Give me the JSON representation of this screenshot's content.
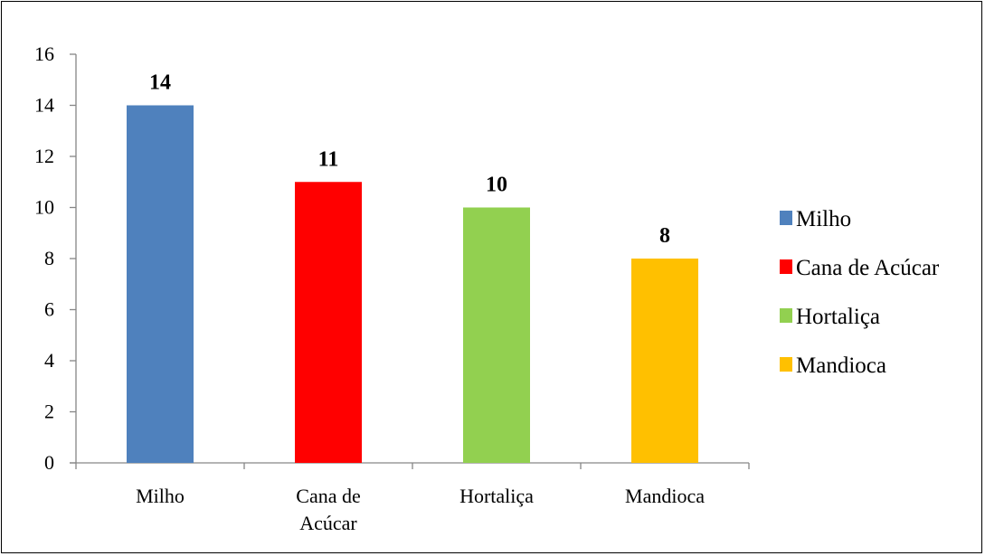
{
  "chart_data": {
    "type": "bar",
    "title": "",
    "xlabel": "",
    "ylabel": "",
    "categories": [
      "Milho",
      "Cana de Acúcar",
      "Hortaliça",
      "Mandioca"
    ],
    "category_tick_lines": [
      [
        "Milho"
      ],
      [
        "Cana de",
        "Acúcar"
      ],
      [
        "Hortaliça"
      ],
      [
        "Mandioca"
      ]
    ],
    "values": [
      14,
      11,
      10,
      8
    ],
    "data_labels": [
      "14",
      "11",
      "10",
      "8"
    ],
    "colors": [
      "#4f81bd",
      "#ff0000",
      "#92d050",
      "#ffc000"
    ],
    "ylim": [
      0,
      16
    ],
    "yticks": [
      0,
      2,
      4,
      6,
      8,
      10,
      12,
      14,
      16
    ],
    "grid": false,
    "legend": {
      "placement": "right",
      "entries": [
        "Milho",
        "Cana de Acúcar",
        "Hortaliça",
        "Mandioca"
      ]
    }
  }
}
